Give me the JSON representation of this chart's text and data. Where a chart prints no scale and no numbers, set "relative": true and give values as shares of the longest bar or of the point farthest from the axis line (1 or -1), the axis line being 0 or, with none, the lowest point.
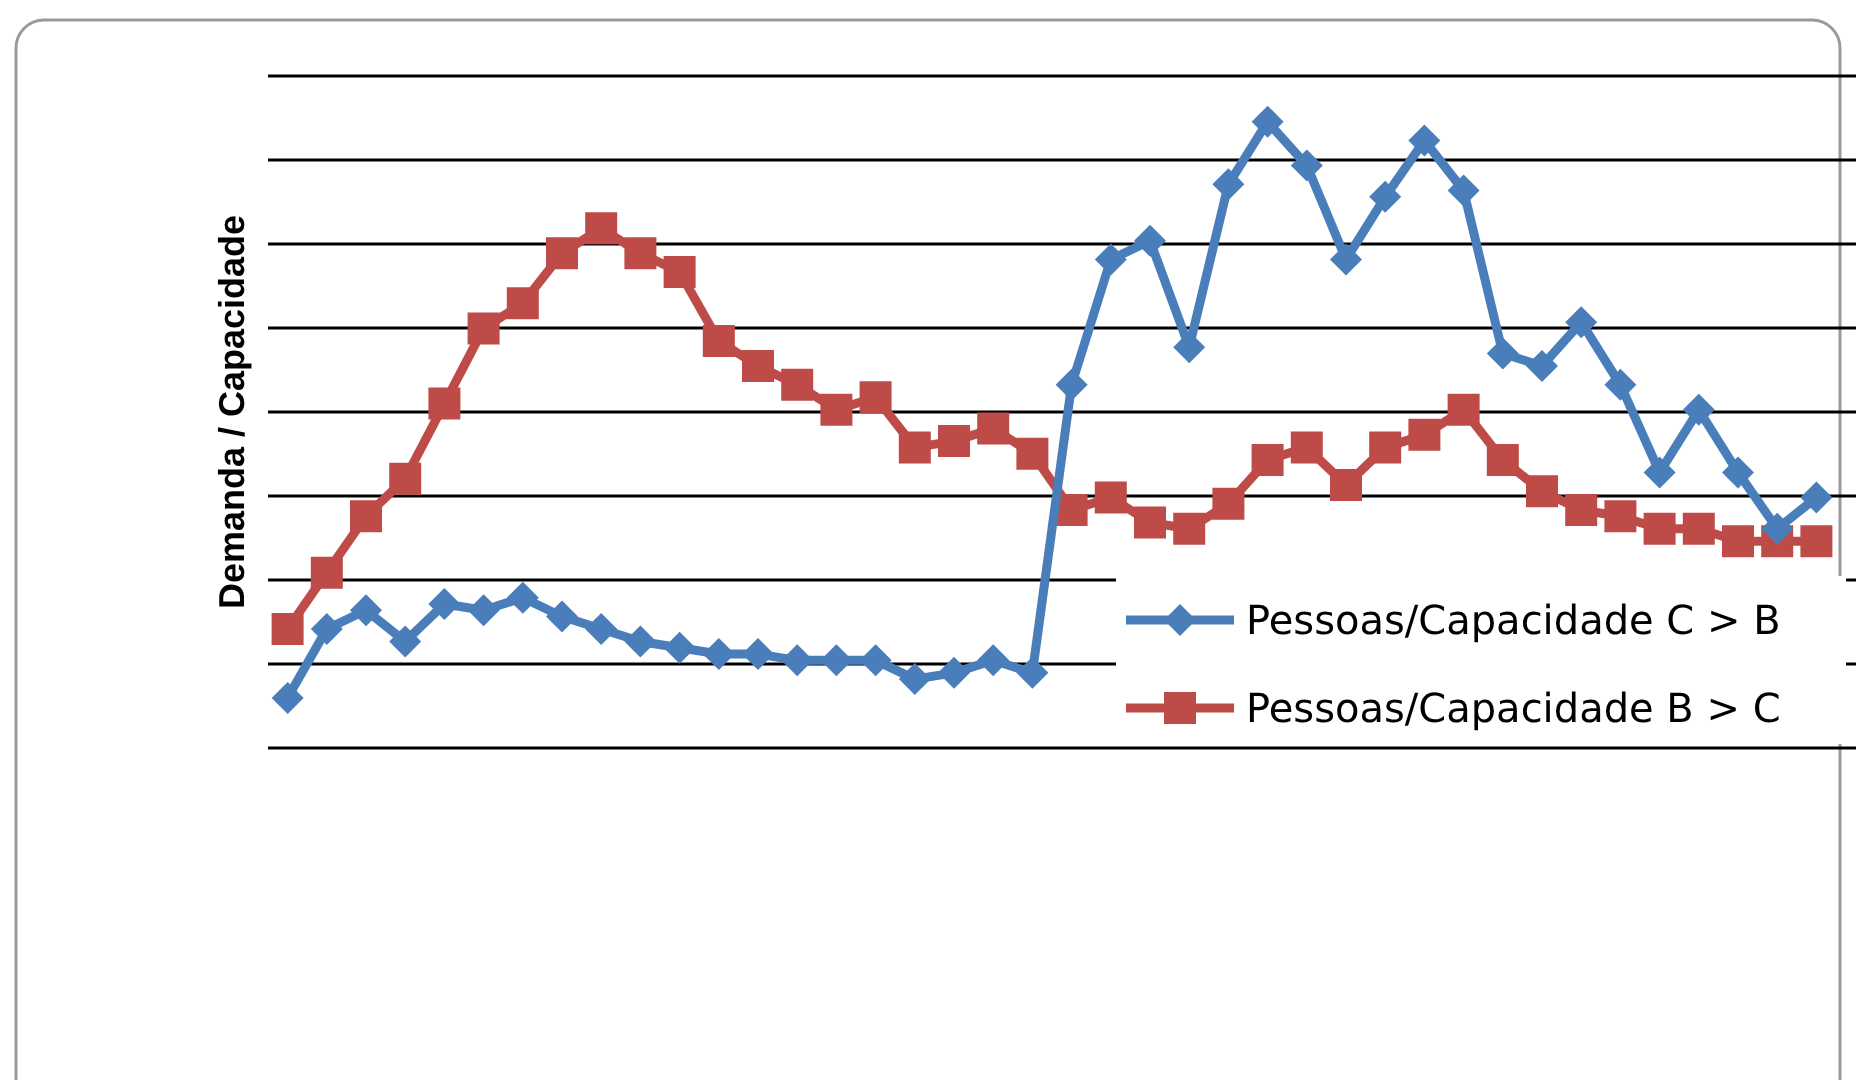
{
  "chart_data": {
    "type": "line",
    "relative": true,
    "ylabel": "Demanda / Capacidade",
    "grid": "y",
    "legend": "bottom right",
    "categories": [
      null,
      null,
      null,
      null,
      null,
      null,
      null,
      null,
      null,
      null,
      null,
      null,
      null,
      null,
      null,
      null,
      null,
      null,
      null,
      null,
      null,
      null,
      null,
      null,
      null,
      null,
      null,
      null,
      null,
      null,
      null,
      null,
      null,
      null,
      null,
      null,
      null,
      null,
      null,
      null
    ],
    "series": [
      {
        "name": "Pessoas/Capacidade C > B",
        "color": "#4a7ebb",
        "marker": "diamond",
        "values": [
          0.08,
          0.19,
          0.22,
          0.17,
          0.23,
          0.22,
          0.24,
          0.21,
          0.19,
          0.17,
          0.16,
          0.15,
          0.15,
          0.14,
          0.14,
          0.14,
          0.11,
          0.12,
          0.14,
          0.12,
          0.58,
          0.78,
          0.81,
          0.64,
          0.9,
          1,
          0.93,
          0.78,
          0.88,
          0.97,
          0.89,
          0.63,
          0.61,
          0.68,
          0.58,
          0.44,
          0.54,
          0.44,
          0.35,
          0.4
        ]
      },
      {
        "name": "Pessoas/Capacidade B > C",
        "color": "#be4b48",
        "marker": "square",
        "values": [
          0.19,
          0.28,
          0.37,
          0.43,
          0.55,
          0.67,
          0.71,
          0.79,
          0.83,
          0.79,
          0.76,
          0.65,
          0.61,
          0.58,
          0.54,
          0.56,
          0.48,
          0.49,
          0.51,
          0.47,
          0.38,
          0.4,
          0.36,
          0.35,
          0.39,
          0.46,
          0.48,
          0.42,
          0.48,
          0.5,
          0.54,
          0.46,
          0.41,
          0.38,
          0.37,
          0.35,
          0.35,
          0.33,
          0.33,
          0.33
        ]
      }
    ]
  }
}
